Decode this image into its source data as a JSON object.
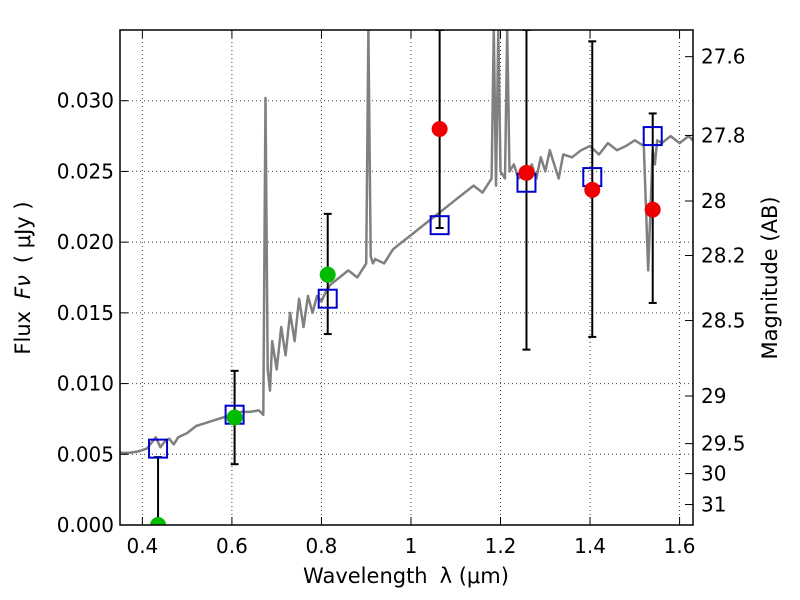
{
  "chart_data": {
    "type": "scatter",
    "title": "",
    "xlabel_text": "Wavelength",
    "xlabel_symbol": "λ (μm)",
    "ylabel_text": "Flux",
    "ylabel_symbol": "Fν",
    "ylabel_unit": "( μJy )",
    "y2label": "Magnitude (AB)",
    "xlim": [
      0.35,
      1.63
    ],
    "ylim": [
      0.0,
      0.035
    ],
    "grid": true,
    "x_ticks": [
      {
        "value": 0.4,
        "label": "0.4"
      },
      {
        "value": 0.6,
        "label": "0.6"
      },
      {
        "value": 0.8,
        "label": "0.8"
      },
      {
        "value": 1.0,
        "label": "1"
      },
      {
        "value": 1.2,
        "label": "1.2"
      },
      {
        "value": 1.4,
        "label": "1.4"
      },
      {
        "value": 1.6,
        "label": "1.6"
      }
    ],
    "y_ticks": [
      {
        "value": 0.0,
        "label": "0.000"
      },
      {
        "value": 0.005,
        "label": "0.005"
      },
      {
        "value": 0.01,
        "label": "0.010"
      },
      {
        "value": 0.015,
        "label": "0.015"
      },
      {
        "value": 0.02,
        "label": "0.020"
      },
      {
        "value": 0.025,
        "label": "0.025"
      },
      {
        "value": 0.03,
        "label": "0.030"
      }
    ],
    "y2_ticks": [
      {
        "value": 27.6,
        "label": "27.6"
      },
      {
        "value": 27.8,
        "label": "27.8"
      },
      {
        "value": 28.0,
        "label": "28"
      },
      {
        "value": 28.2,
        "label": "28.2"
      },
      {
        "value": 28.5,
        "label": "28.5"
      },
      {
        "value": 29.0,
        "label": "29"
      },
      {
        "value": 29.5,
        "label": "29.5"
      },
      {
        "value": 30.0,
        "label": "30"
      },
      {
        "value": 31.0,
        "label": "31"
      }
    ],
    "model_spectrum": {
      "color": "#808080",
      "x": [
        0.35,
        0.37,
        0.39,
        0.41,
        0.42,
        0.43,
        0.44,
        0.45,
        0.46,
        0.47,
        0.48,
        0.5,
        0.52,
        0.54,
        0.56,
        0.58,
        0.6,
        0.62,
        0.64,
        0.66,
        0.67,
        0.675,
        0.68,
        0.685,
        0.69,
        0.7,
        0.71,
        0.72,
        0.73,
        0.74,
        0.75,
        0.76,
        0.77,
        0.78,
        0.79,
        0.8,
        0.81,
        0.82,
        0.84,
        0.86,
        0.88,
        0.9,
        0.905,
        0.91,
        0.915,
        0.92,
        0.94,
        0.96,
        0.98,
        1.0,
        1.02,
        1.04,
        1.06,
        1.08,
        1.1,
        1.12,
        1.14,
        1.16,
        1.18,
        1.185,
        1.19,
        1.195,
        1.2,
        1.21,
        1.215,
        1.22,
        1.23,
        1.24,
        1.26,
        1.27,
        1.28,
        1.29,
        1.3,
        1.31,
        1.32,
        1.33,
        1.34,
        1.36,
        1.38,
        1.4,
        1.42,
        1.44,
        1.46,
        1.48,
        1.5,
        1.52,
        1.53,
        1.54,
        1.545,
        1.55,
        1.56,
        1.58,
        1.6,
        1.62,
        1.63
      ],
      "y": [
        0.0051,
        0.0051,
        0.0052,
        0.0054,
        0.0058,
        0.0062,
        0.0055,
        0.0059,
        0.0061,
        0.0057,
        0.0062,
        0.0065,
        0.007,
        0.0072,
        0.0074,
        0.0076,
        0.0078,
        0.008,
        0.008,
        0.0081,
        0.0078,
        0.0302,
        0.011,
        0.0095,
        0.013,
        0.011,
        0.014,
        0.012,
        0.015,
        0.013,
        0.016,
        0.014,
        0.0162,
        0.015,
        0.0162,
        0.0158,
        0.0165,
        0.017,
        0.0175,
        0.018,
        0.0175,
        0.0185,
        0.035,
        0.019,
        0.0185,
        0.0188,
        0.0185,
        0.0195,
        0.02,
        0.0205,
        0.021,
        0.0215,
        0.022,
        0.0225,
        0.023,
        0.0235,
        0.024,
        0.0235,
        0.0245,
        0.035,
        0.024,
        0.035,
        0.025,
        0.0245,
        0.035,
        0.025,
        0.0255,
        0.0245,
        0.0248,
        0.0255,
        0.0245,
        0.026,
        0.025,
        0.0265,
        0.0255,
        0.0245,
        0.0262,
        0.026,
        0.0265,
        0.0268,
        0.0262,
        0.027,
        0.0265,
        0.0268,
        0.0272,
        0.0268,
        0.018,
        0.0265,
        0.0255,
        0.0272,
        0.027,
        0.0275,
        0.027,
        0.0275,
        0.0272
      ]
    },
    "model_photometry": {
      "marker": "open-square",
      "color": "#0000cc",
      "x": [
        0.435,
        0.606,
        0.814,
        1.064,
        1.258,
        1.405,
        1.54
      ],
      "y": [
        0.0054,
        0.0078,
        0.016,
        0.0212,
        0.0242,
        0.0246,
        0.0275
      ]
    },
    "observed_detections": {
      "marker": "filled-circle",
      "color": "#00bb00",
      "x": [
        0.435,
        0.606,
        0.814
      ],
      "y": [
        0.0,
        0.0076,
        0.0177
      ],
      "yerr_low": [
        0.0,
        0.0043,
        0.0135
      ],
      "yerr_high": [
        0.0048,
        0.0109,
        0.022
      ]
    },
    "observed_other": {
      "marker": "filled-circle",
      "color": "#ee0000",
      "x": [
        1.064,
        1.258,
        1.405,
        1.54
      ],
      "y": [
        0.028,
        0.0249,
        0.0237,
        0.0223
      ],
      "yerr_low": [
        0.021,
        0.0124,
        0.0133,
        0.0157
      ],
      "yerr_high": [
        0.035,
        0.035,
        0.0342,
        0.0291
      ]
    }
  }
}
